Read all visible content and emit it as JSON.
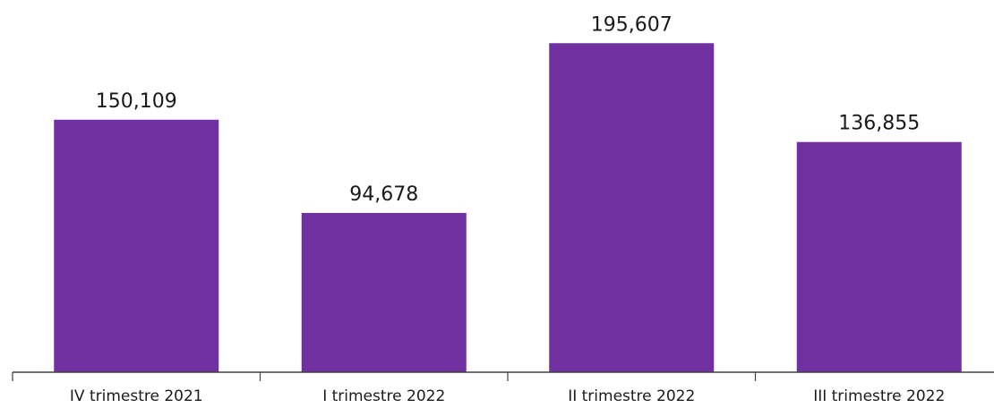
{
  "chart_data": {
    "type": "bar",
    "categories": [
      "IV trimestre 2021",
      "I trimestre 2022",
      "II trimestre 2022",
      "III trimestre 2022"
    ],
    "values": [
      150109,
      94678,
      195607,
      136855
    ],
    "value_labels": [
      "150,109",
      "94,678",
      "195,607",
      "136,855"
    ],
    "ylim": [
      0,
      200000
    ],
    "grid": false,
    "bar_color": "#7030a0"
  }
}
